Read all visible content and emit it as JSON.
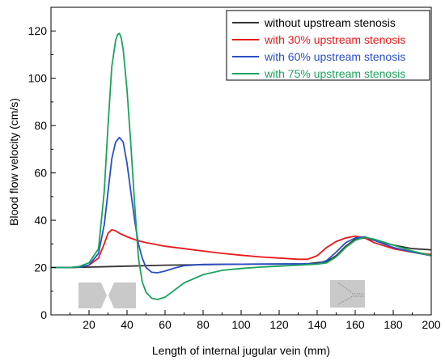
{
  "chart_data": {
    "type": "line",
    "title": "",
    "xlabel": "Length of internal jugular vein (mm)",
    "ylabel": "Blood flow velocity (cm/s)",
    "xlim": [
      0,
      200
    ],
    "ylim": [
      0,
      130
    ],
    "x_ticks": [
      20,
      40,
      60,
      80,
      100,
      120,
      140,
      160,
      180,
      200
    ],
    "y_ticks": [
      0,
      20,
      40,
      60,
      80,
      100,
      120
    ],
    "grid": false,
    "legend_position": "top-right",
    "series": [
      {
        "name": "without upstream stenosis",
        "color": "#333333",
        "x": [
          0,
          10,
          20,
          40,
          60,
          80,
          100,
          120,
          135,
          145,
          150,
          155,
          160,
          165,
          170,
          180,
          190,
          200
        ],
        "y": [
          20,
          20,
          20.2,
          20.6,
          21,
          21.2,
          21.4,
          21.5,
          21.6,
          22.5,
          25,
          29,
          32,
          32.5,
          31.5,
          29.5,
          28,
          27.5
        ]
      },
      {
        "name": "with 30% upstream stenosis",
        "color": "#e8191b",
        "x": [
          0,
          10,
          15,
          20,
          25,
          28,
          30,
          32,
          34,
          36,
          40,
          45,
          50,
          60,
          70,
          80,
          90,
          100,
          110,
          120,
          130,
          135,
          140,
          145,
          150,
          155,
          160,
          165,
          170,
          180,
          190,
          200
        ],
        "y": [
          20,
          20,
          20.2,
          21,
          24,
          30,
          34.5,
          36,
          35.5,
          34.5,
          33,
          31.5,
          30.5,
          29,
          28,
          27,
          26,
          25.2,
          24.5,
          24,
          23.5,
          23.5,
          25,
          28.5,
          31,
          32.5,
          33.3,
          32.5,
          30.5,
          28,
          26.5,
          25.5
        ]
      },
      {
        "name": "with 60% upstream stenosis",
        "color": "#2a4fc7",
        "x": [
          0,
          10,
          15,
          20,
          25,
          28,
          30,
          32,
          34,
          36,
          38,
          40,
          42,
          44,
          46,
          48,
          50,
          53,
          56,
          60,
          65,
          70,
          80,
          100,
          120,
          140,
          145,
          150,
          155,
          160,
          165,
          170,
          180,
          190,
          200
        ],
        "y": [
          20,
          20,
          20.2,
          21,
          26,
          38,
          52,
          66,
          73,
          75,
          73,
          64,
          52,
          40,
          30,
          24,
          20,
          18,
          17.8,
          18.5,
          19.8,
          20.8,
          21.3,
          21.4,
          21.5,
          21.6,
          23,
          26.5,
          30.5,
          32.5,
          33,
          31.5,
          28.5,
          26.5,
          25
        ]
      },
      {
        "name": "with 75% upstream stenosis",
        "color": "#1ca35c",
        "x": [
          0,
          10,
          15,
          20,
          25,
          28,
          30,
          32,
          34,
          35,
          36,
          37,
          38,
          40,
          42,
          44,
          46,
          48,
          50,
          53,
          56,
          60,
          65,
          70,
          80,
          90,
          100,
          110,
          120,
          130,
          140,
          145,
          150,
          155,
          160,
          165,
          170,
          180,
          190,
          200
        ],
        "y": [
          20,
          20,
          20.5,
          22,
          28,
          52,
          80,
          105,
          116,
          118.5,
          119,
          117,
          112,
          95,
          72,
          47,
          24,
          14,
          9.5,
          7,
          6.5,
          7.5,
          10.5,
          13.5,
          17,
          18.8,
          19.6,
          20.2,
          20.6,
          21,
          21.4,
          22,
          24.5,
          28.5,
          31.5,
          32.8,
          32,
          29.5,
          27,
          25
        ]
      }
    ]
  }
}
